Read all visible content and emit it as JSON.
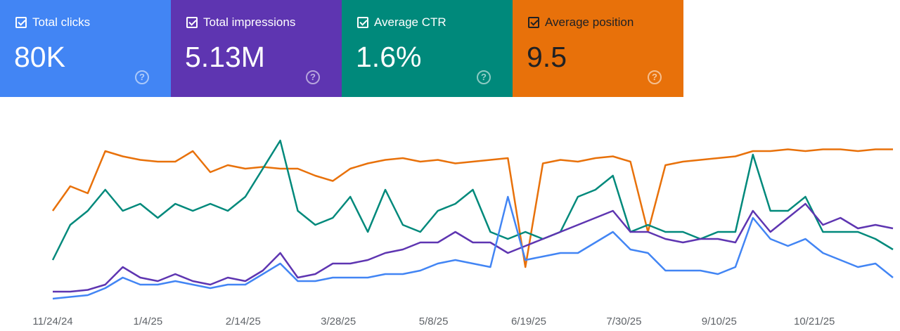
{
  "cards": [
    {
      "label": "Total clicks",
      "value": "80K",
      "color": "#4285f4",
      "checked": true
    },
    {
      "label": "Total impressions",
      "value": "5.13M",
      "color": "#5e35b1",
      "checked": true
    },
    {
      "label": "Average CTR",
      "value": "1.6%",
      "color": "#00897b",
      "checked": true
    },
    {
      "label": "Average position",
      "value": "9.5",
      "color": "#e8710a",
      "checked": true
    }
  ],
  "help_icon": "?",
  "chart_data": {
    "type": "line",
    "title": "",
    "xlabel": "",
    "ylabel": "",
    "note": "values are relative levels (0-100) per metric; axes hidden",
    "ylim": [
      0,
      100
    ],
    "x_ticks": [
      "11/24/24",
      "1/4/25",
      "2/14/25",
      "3/28/25",
      "5/8/25",
      "6/19/25",
      "7/30/25",
      "9/10/25",
      "10/21/25"
    ],
    "series": [
      {
        "name": "Average position",
        "color": "#e8710a",
        "values": [
          52,
          66,
          62,
          86,
          83,
          81,
          80,
          80,
          86,
          74,
          78,
          76,
          77,
          76,
          76,
          72,
          69,
          76,
          79,
          81,
          82,
          80,
          81,
          79,
          80,
          81,
          82,
          20,
          79,
          81,
          80,
          82,
          83,
          80,
          40,
          78,
          80,
          81,
          82,
          83,
          86,
          86,
          87,
          86,
          87,
          87,
          86,
          87,
          87
        ]
      },
      {
        "name": "Average CTR",
        "color": "#00897b",
        "values": [
          24,
          44,
          52,
          64,
          52,
          56,
          48,
          56,
          52,
          56,
          52,
          60,
          76,
          92,
          52,
          44,
          48,
          60,
          40,
          64,
          44,
          40,
          52,
          56,
          64,
          40,
          36,
          40,
          36,
          40,
          60,
          64,
          72,
          40,
          44,
          40,
          40,
          36,
          40,
          40,
          84,
          52,
          52,
          60,
          40,
          40,
          40,
          36,
          30
        ]
      },
      {
        "name": "Total impressions",
        "color": "#5e35b1",
        "values": [
          6,
          6,
          7,
          10,
          20,
          14,
          12,
          16,
          12,
          10,
          14,
          12,
          18,
          28,
          14,
          16,
          22,
          22,
          24,
          28,
          30,
          34,
          34,
          40,
          34,
          34,
          28,
          32,
          36,
          40,
          44,
          48,
          52,
          40,
          40,
          36,
          34,
          36,
          36,
          34,
          52,
          40,
          48,
          56,
          44,
          48,
          42,
          44,
          42
        ]
      },
      {
        "name": "Total clicks",
        "color": "#4285f4",
        "values": [
          2,
          3,
          4,
          8,
          14,
          10,
          10,
          12,
          10,
          8,
          10,
          10,
          16,
          22,
          12,
          12,
          14,
          14,
          14,
          16,
          16,
          18,
          22,
          24,
          22,
          20,
          60,
          24,
          26,
          28,
          28,
          34,
          40,
          30,
          28,
          18,
          18,
          18,
          16,
          20,
          48,
          36,
          32,
          36,
          28,
          24,
          20,
          22,
          14
        ]
      }
    ]
  }
}
